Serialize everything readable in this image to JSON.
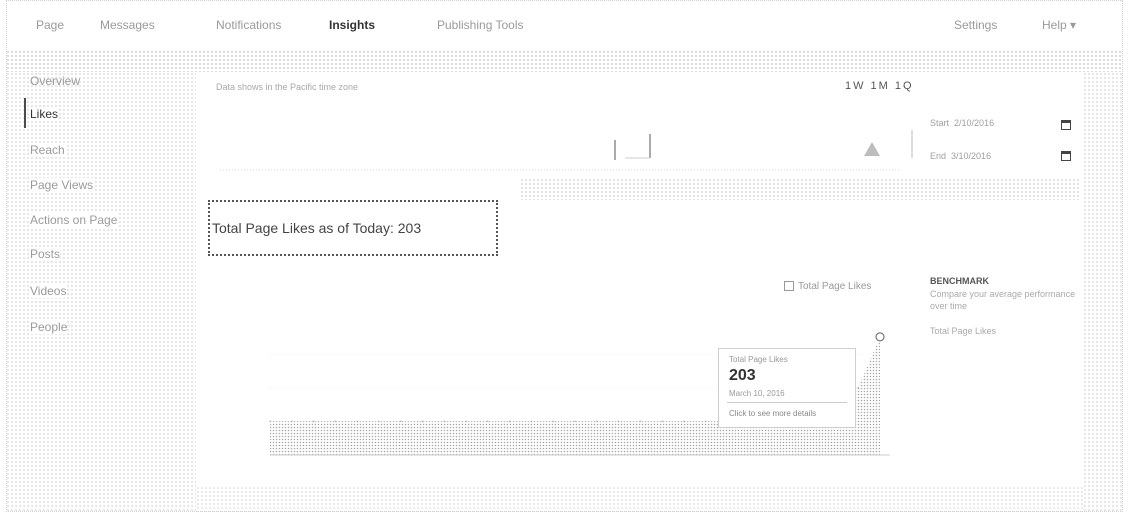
{
  "topnav": {
    "items": [
      "Page",
      "Messages",
      "Notifications",
      "Insights",
      "Publishing Tools"
    ],
    "settings": "Settings",
    "help": "Help ▾"
  },
  "sidebar": {
    "items": [
      "Overview",
      "Likes",
      "Reach",
      "Page Views",
      "Actions on Page",
      "Posts",
      "Videos",
      "People"
    ]
  },
  "timezone_note": "Data shows in the Pacific time zone",
  "range_buttons": "1W 1M 1Q",
  "date_range": {
    "start_label": "Start",
    "start_value": "2/10/2016",
    "end_label": "End",
    "end_value": "3/10/2016"
  },
  "headline": {
    "text": "Total Page Likes as of Today: 203"
  },
  "legend": {
    "label": "Total Page Likes"
  },
  "benchmark": {
    "title": "BENCHMARK",
    "desc": "Compare your average performance over time",
    "item": "Total Page Likes"
  },
  "tooltip": {
    "title": "Total Page Likes",
    "value": "203",
    "date": "March 10, 2016",
    "link": "Click to see more details"
  },
  "chart_data": {
    "type": "area",
    "series": [
      {
        "name": "Total Page Likes",
        "values": [
          198,
          198,
          198,
          198,
          198,
          198,
          198,
          198,
          198,
          198,
          198,
          198,
          198,
          198,
          198,
          198,
          198,
          198,
          198,
          198,
          198,
          198,
          199,
          199,
          199,
          199,
          200,
          200,
          203
        ]
      }
    ],
    "ylim": [
      196,
      204
    ]
  },
  "colors": {
    "accent": "#4b4b4b",
    "dots": "#c4c4c4"
  }
}
